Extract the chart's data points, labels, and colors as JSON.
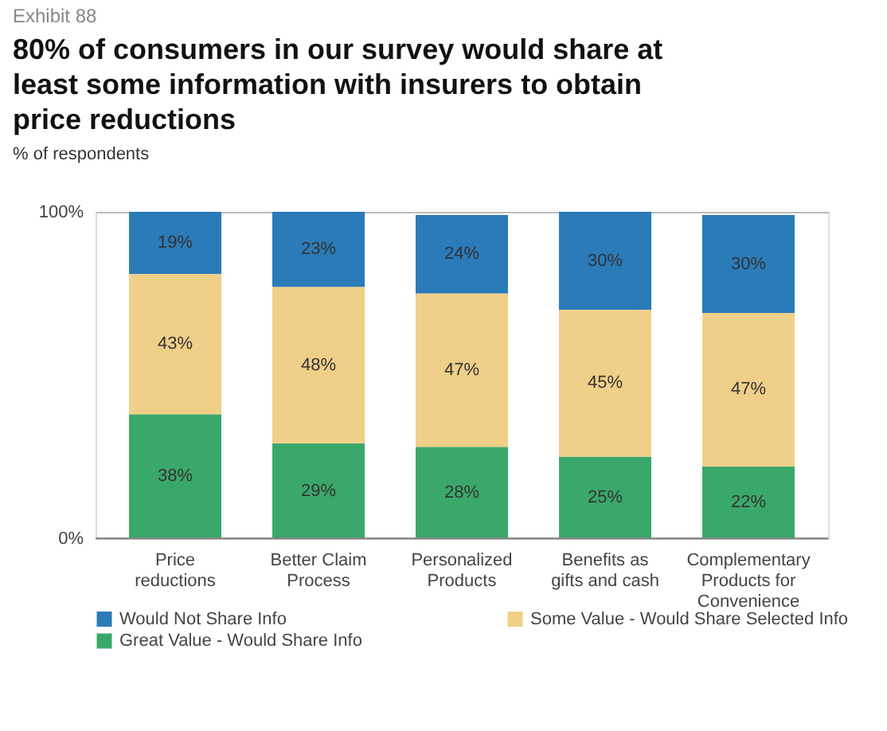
{
  "chart_data": {
    "type": "bar",
    "stacked": true,
    "title": "80% of consumers in our survey would share at least some information with insurers to obtain price reductions",
    "annotations": [
      "Exhibit 88"
    ],
    "ylabel": "% of respondents",
    "categories": [
      "Price reductions",
      "Better Claim Process",
      "Personalized Products",
      "Benefits as gifts and cash",
      "Complementary Products for Convenience"
    ],
    "series": [
      {
        "name": "Great Value - Would Share Info",
        "color": "#3aa86a",
        "values": [
          38,
          29,
          28,
          25,
          22
        ],
        "value_labels": [
          "38%",
          "29%",
          "28%",
          "25%",
          "22%"
        ]
      },
      {
        "name": "Some Value - Would Share Selected Info",
        "color": "#f0cf88",
        "values": [
          43,
          48,
          47,
          45,
          47
        ],
        "value_labels": [
          "43%",
          "48%",
          "47%",
          "45%",
          "47%"
        ]
      },
      {
        "name": "Would Not Share Info",
        "color": "#2a7bb8",
        "values": [
          19,
          23,
          24,
          30,
          30
        ],
        "value_labels": [
          "19%",
          "23%",
          "24%",
          "30%",
          "30%"
        ]
      }
    ],
    "ylim": [
      0,
      100
    ],
    "yticks": [
      {
        "value": 0,
        "label": "0%"
      },
      {
        "value": 100,
        "label": "100%"
      }
    ],
    "grid": "y",
    "legend": "bottom"
  }
}
